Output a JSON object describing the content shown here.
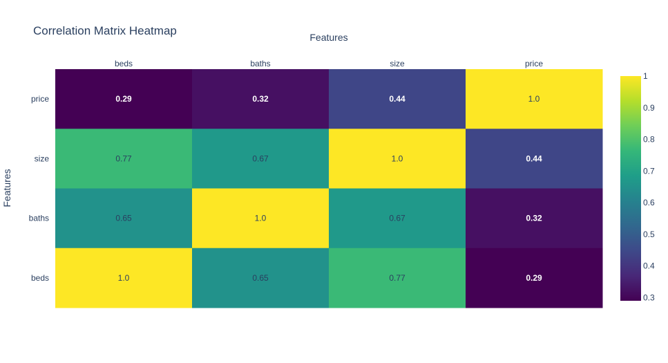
{
  "chart_data": {
    "type": "heatmap",
    "title": "Correlation Matrix Heatmap",
    "xlabel": "Features",
    "ylabel": "Features",
    "x_categories": [
      "beds",
      "baths",
      "size",
      "price"
    ],
    "y_categories": [
      "price",
      "size",
      "baths",
      "beds"
    ],
    "values": [
      [
        0.29,
        0.32,
        0.44,
        1.0
      ],
      [
        0.77,
        0.67,
        1.0,
        0.44
      ],
      [
        0.65,
        1.0,
        0.67,
        0.32
      ],
      [
        1.0,
        0.65,
        0.77,
        0.29
      ]
    ],
    "value_labels": [
      [
        "0.29",
        "0.32",
        "0.44",
        "1.0"
      ],
      [
        "0.77",
        "0.67",
        "1.0",
        "0.44"
      ],
      [
        "0.65",
        "1.0",
        "0.67",
        "0.32"
      ],
      [
        "1.0",
        "0.65",
        "0.77",
        "0.29"
      ]
    ],
    "colorscale": "Viridis",
    "zmin": 0.29,
    "zmax": 1.0,
    "colorbar_ticks": [
      0.3,
      0.4,
      0.5,
      0.6,
      0.7,
      0.8,
      0.9,
      1
    ],
    "colorbar_tick_labels": [
      "0.3",
      "0.4",
      "0.5",
      "0.6",
      "0.7",
      "0.8",
      "0.9",
      "1"
    ],
    "x_axis_position": "top",
    "grid": false,
    "colors": {
      "text": "#2a3f5f",
      "background": "#ffffff",
      "viridis": [
        "#440154",
        "#482878",
        "#3e4989",
        "#31688e",
        "#26828e",
        "#1f9e89",
        "#35b779",
        "#6ece58",
        "#b5de2b",
        "#fde725"
      ]
    }
  }
}
